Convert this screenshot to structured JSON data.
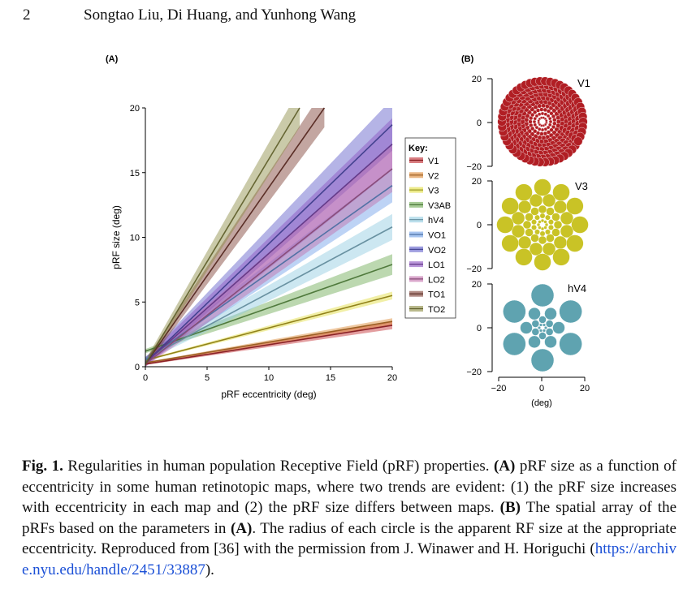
{
  "header": {
    "page_number": "2",
    "authors": "Songtao Liu, Di Huang, and Yunhong Wang"
  },
  "figure": {
    "panel_a_label": "(A)",
    "panel_b_label": "(B)",
    "legend_title": "Key:",
    "panel_b_xlabel": "(deg)",
    "map_labels": [
      "V1",
      "V3",
      "hV4"
    ]
  },
  "colors": {
    "V1": "#c0272d",
    "V2": "#d9822b",
    "V3": "#e0dc3a",
    "V3AB": "#6aa84f",
    "hV4": "#8ec9e0",
    "VO1": "#6d9ee8",
    "VO2": "#5a58c8",
    "LO1": "#8a4fc0",
    "LO2": "#c06aa8",
    "TO1": "#7a3a2e",
    "TO2": "#8a8a40",
    "V1_dots": "#b11e24",
    "V3_dots": "#c9c326",
    "hV4_dots": "#5fa3b0"
  },
  "chart_data": [
    {
      "type": "line",
      "title": "",
      "xlabel": "pRF eccentricity (deg)",
      "ylabel": "pRF size (deg)",
      "xlim": [
        0,
        20
      ],
      "ylim": [
        0,
        20
      ],
      "xticks": [
        0,
        5,
        10,
        15,
        20
      ],
      "yticks": [
        0,
        5,
        10,
        15,
        20
      ],
      "legend_placement": "right",
      "series": [
        {
          "name": "V1",
          "x": [
            0,
            20
          ],
          "y": [
            0.2,
            3.2
          ],
          "band": 0.3
        },
        {
          "name": "V2",
          "x": [
            0,
            20
          ],
          "y": [
            0.3,
            3.5
          ],
          "band": 0.25
        },
        {
          "name": "V3",
          "x": [
            0,
            20
          ],
          "y": [
            0.5,
            5.5
          ],
          "band": 0.3
        },
        {
          "name": "V3AB",
          "x": [
            0,
            20
          ],
          "y": [
            1.2,
            7.9
          ],
          "band": 0.8
        },
        {
          "name": "hV4",
          "x": [
            0,
            20
          ],
          "y": [
            0.6,
            10.8
          ],
          "band": 1.0
        },
        {
          "name": "VO1",
          "x": [
            0,
            20
          ],
          "y": [
            0.5,
            14.0
          ],
          "band": 1.3
        },
        {
          "name": "VO2",
          "x": [
            0,
            20
          ],
          "y": [
            0.3,
            18.7
          ],
          "band": 2.0
        },
        {
          "name": "LO1",
          "x": [
            0,
            20
          ],
          "y": [
            0.3,
            17.2
          ],
          "band": 2.0
        },
        {
          "name": "LO2",
          "x": [
            0,
            20
          ],
          "y": [
            0.2,
            15.3
          ],
          "band": 1.8
        },
        {
          "name": "TO1",
          "x": [
            0,
            14.5
          ],
          "y": [
            0.2,
            20.0
          ],
          "band": 1.5
        },
        {
          "name": "TO2",
          "x": [
            0,
            12.5
          ],
          "y": [
            0.2,
            20.0
          ],
          "band": 1.5
        }
      ]
    },
    {
      "type": "scatter",
      "title": "V1",
      "xlim": [
        -20,
        20
      ],
      "ylim": [
        -20,
        20
      ],
      "yticks": [
        20,
        0,
        -20
      ]
    },
    {
      "type": "scatter",
      "title": "V3",
      "xlim": [
        -20,
        20
      ],
      "ylim": [
        -20,
        20
      ],
      "yticks": [
        20,
        0,
        -20
      ]
    },
    {
      "type": "scatter",
      "title": "hV4",
      "xlim": [
        -20,
        20
      ],
      "ylim": [
        -20,
        20
      ],
      "yticks": [
        20,
        0,
        -20
      ],
      "xticks": [
        -20,
        0,
        20
      ],
      "xlabel": "(deg)"
    }
  ],
  "caption": {
    "fig_label": "Fig. 1.",
    "part1": " Regularities in human population Receptive Field (pRF) properties. ",
    "a_label": "(A)",
    "part2": " pRF size as a function of eccentricity in some human retinotopic maps, where two trends are evident: (1) the pRF size increases with eccentricity in each map and (2) the pRF size differs between maps. ",
    "b_label": "(B)",
    "part3": " The spatial array of the pRFs based on the parameters in ",
    "a_label2": "(A)",
    "part4": ". The radius of each circle is the apparent RF size at the appropriate eccentricity. Reproduced from [36] with the permission from J. Winawer and H. Horiguchi (",
    "link": "https://archive.nyu.edu/handle/2451/33887",
    "part5": ")."
  }
}
